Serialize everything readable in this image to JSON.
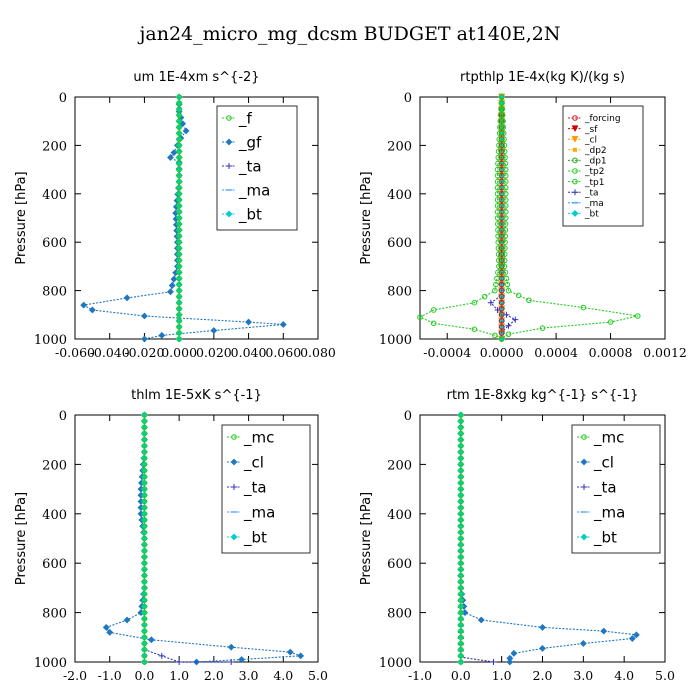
{
  "figure": {
    "title": "jan24_micro_mg_dcsm  BUDGET at140E,2N"
  },
  "chart_data": [
    {
      "type": "line",
      "title": "um   1E-4xm s^{-2}",
      "ylabel": "Pressure [hPa]",
      "xlabel": "",
      "xlim": [
        -0.06,
        0.08
      ],
      "ylim": [
        1000,
        0
      ],
      "xticks": [
        "-0.060",
        "-0.040",
        "-0.020",
        "0.000",
        "0.020",
        "0.040",
        "0.060",
        "0.080"
      ],
      "yticks": [
        "0",
        "200",
        "400",
        "600",
        "800",
        "1000"
      ],
      "legend_position": "top-right",
      "series": [
        {
          "name": "_f",
          "color": "#22cc22",
          "marker": "circle",
          "points": [
            [
              0,
              0
            ],
            [
              0,
              100
            ],
            [
              0,
              200
            ],
            [
              0,
              300
            ],
            [
              0,
              400
            ],
            [
              0,
              500
            ],
            [
              0,
              600
            ],
            [
              0,
              700
            ],
            [
              0,
              800
            ],
            [
              0,
              900
            ],
            [
              0,
              950
            ],
            [
              0,
              1000
            ]
          ]
        },
        {
          "name": "_gf",
          "color": "#1f77c0",
          "marker": "star",
          "points": [
            [
              0,
              0
            ],
            [
              0,
              60
            ],
            [
              0.002,
              110
            ],
            [
              0.004,
              140
            ],
            [
              0.001,
              170
            ],
            [
              -0.003,
              230
            ],
            [
              -0.005,
              250
            ],
            [
              0,
              270
            ],
            [
              0,
              350
            ],
            [
              -0.002,
              480
            ],
            [
              -0.001,
              600
            ],
            [
              -0.001,
              700
            ],
            [
              -0.005,
              805
            ],
            [
              -0.03,
              830
            ],
            [
              -0.055,
              860
            ],
            [
              -0.05,
              880
            ],
            [
              -0.02,
              905
            ],
            [
              0.04,
              930
            ],
            [
              0.06,
              940
            ],
            [
              0.02,
              965
            ],
            [
              -0.01,
              985
            ],
            [
              -0.02,
              1000
            ]
          ]
        },
        {
          "name": "_ta",
          "color": "#3333bb",
          "marker": "plus",
          "points": [
            [
              0,
              0
            ],
            [
              0,
              500
            ],
            [
              0,
              1000
            ]
          ]
        },
        {
          "name": "_ma",
          "color": "#3399ff",
          "marker": "dash",
          "points": [
            [
              0,
              0
            ],
            [
              0,
              1000
            ]
          ]
        },
        {
          "name": "_bt",
          "color": "#00cccc",
          "marker": "diamond",
          "points": [
            [
              0,
              0
            ],
            [
              0,
              1000
            ]
          ]
        }
      ]
    },
    {
      "type": "line",
      "title": "rtpthlp   1E-4x(kg K)/(kg s)",
      "ylabel": "Pressure [hPa]",
      "xlabel": "",
      "xlim": [
        -0.0006,
        0.0012
      ],
      "ylim": [
        1000,
        0
      ],
      "xticks": [
        "-0.0004",
        "0.0000",
        "0.0004",
        "0.0008",
        "0.0012"
      ],
      "yticks": [
        "0",
        "200",
        "400",
        "600",
        "800",
        "1000"
      ],
      "legend_position": "top-right",
      "series": [
        {
          "name": "_forcing",
          "color": "#cc2222",
          "marker": "circle",
          "points": [
            [
              0,
              0
            ],
            [
              0,
              1000
            ]
          ]
        },
        {
          "name": "_sf",
          "color": "#cc0000",
          "marker": "triangle",
          "points": [
            [
              0,
              0
            ],
            [
              0,
              1000
            ]
          ]
        },
        {
          "name": "_cl",
          "color": "#ff9900",
          "marker": "triangle",
          "points": [
            [
              0,
              0
            ],
            [
              0,
              1000
            ]
          ]
        },
        {
          "name": "_dp2",
          "color": "#ffaa00",
          "marker": "square",
          "points": [
            [
              0,
              0
            ],
            [
              0,
              1000
            ]
          ]
        },
        {
          "name": "_dp1",
          "color": "#22aa22",
          "marker": "circle",
          "points": [
            [
              0,
              0
            ],
            [
              0,
              1000
            ]
          ]
        },
        {
          "name": "_tp2",
          "color": "#22cc22",
          "marker": "circle",
          "points": [
            [
              0,
              0
            ],
            [
              3e-05,
              300
            ],
            [
              3e-05,
              500
            ],
            [
              2e-05,
              700
            ],
            [
              5e-05,
              800
            ],
            [
              0.0002,
              840
            ],
            [
              0.0006,
              870
            ],
            [
              0.001,
              905
            ],
            [
              0.0008,
              930
            ],
            [
              0.0003,
              955
            ],
            [
              5e-05,
              980
            ],
            [
              0,
              1000
            ]
          ]
        },
        {
          "name": "_tp1",
          "color": "#22cc22",
          "marker": "circle",
          "points": [
            [
              0,
              0
            ],
            [
              -3e-05,
              300
            ],
            [
              -3e-05,
              500
            ],
            [
              -2e-05,
              700
            ],
            [
              -5e-05,
              800
            ],
            [
              -0.0002,
              850
            ],
            [
              -0.0005,
              880
            ],
            [
              -0.0006,
              910
            ],
            [
              -0.0005,
              935
            ],
            [
              -0.0002,
              960
            ],
            [
              -5e-05,
              985
            ],
            [
              0,
              1000
            ]
          ]
        },
        {
          "name": "_ta",
          "color": "#3333bb",
          "marker": "plus",
          "points": [
            [
              0,
              0
            ],
            [
              0,
              820
            ],
            [
              -8e-05,
              850
            ],
            [
              -3e-05,
              880
            ],
            [
              0.0001,
              920
            ],
            [
              5e-05,
              945
            ],
            [
              0,
              970
            ],
            [
              0,
              1000
            ]
          ]
        },
        {
          "name": "_ma",
          "color": "#3399ff",
          "marker": "dash",
          "points": [
            [
              0,
              0
            ],
            [
              0,
              1000
            ]
          ]
        },
        {
          "name": "_bt",
          "color": "#00cccc",
          "marker": "diamond",
          "points": [
            [
              0,
              0
            ],
            [
              0,
              1000
            ]
          ]
        }
      ]
    },
    {
      "type": "line",
      "title": "thlm   1E-5xK s^{-1}",
      "ylabel": "Pressure [hPa]",
      "xlabel": "",
      "xlim": [
        -2.0,
        5.0
      ],
      "ylim": [
        1000,
        0
      ],
      "xticks": [
        "-2.0",
        "-1.0",
        "0.0",
        "1.0",
        "2.0",
        "3.0",
        "4.0",
        "5.0"
      ],
      "yticks": [
        "0",
        "200",
        "400",
        "600",
        "800",
        "1000"
      ],
      "legend_position": "top-right",
      "series": [
        {
          "name": "_mc",
          "color": "#22cc22",
          "marker": "circle",
          "points": [
            [
              0,
              0
            ],
            [
              0,
              1000
            ]
          ]
        },
        {
          "name": "_cl",
          "color": "#1f77c0",
          "marker": "star",
          "points": [
            [
              0,
              0
            ],
            [
              0,
              150
            ],
            [
              -0.1,
              300
            ],
            [
              -0.1,
              400
            ],
            [
              0,
              500
            ],
            [
              0,
              600
            ],
            [
              0,
              700
            ],
            [
              -0.1,
              800
            ],
            [
              -0.5,
              830
            ],
            [
              -1.1,
              860
            ],
            [
              -1.0,
              880
            ],
            [
              0.2,
              910
            ],
            [
              2.5,
              940
            ],
            [
              4.2,
              960
            ],
            [
              4.5,
              975
            ],
            [
              2.8,
              990
            ],
            [
              1.5,
              1000
            ]
          ]
        },
        {
          "name": "_ta",
          "color": "#3333bb",
          "marker": "plus",
          "points": [
            [
              0,
              0
            ],
            [
              0,
              950
            ],
            [
              1.0,
              1000
            ],
            [
              2.5,
              1000
            ]
          ]
        },
        {
          "name": "_ma",
          "color": "#3399ff",
          "marker": "dash",
          "points": [
            [
              0,
              0
            ],
            [
              0,
              1000
            ]
          ]
        },
        {
          "name": "_bt",
          "color": "#00cccc",
          "marker": "diamond",
          "points": [
            [
              0,
              0
            ],
            [
              0,
              1000
            ]
          ]
        }
      ]
    },
    {
      "type": "line",
      "title": "rtm   1E-8xkg kg^{-1} s^{-1}",
      "ylabel": "Pressure [hPa]",
      "xlabel": "",
      "xlim": [
        -1.0,
        5.0
      ],
      "ylim": [
        1000,
        0
      ],
      "xticks": [
        "-1.0",
        "0.0",
        "1.0",
        "2.0",
        "3.0",
        "4.0",
        "5.0"
      ],
      "yticks": [
        "0",
        "200",
        "400",
        "600",
        "800",
        "1000"
      ],
      "legend_position": "top-right",
      "series": [
        {
          "name": "_mc",
          "color": "#22cc22",
          "marker": "circle",
          "points": [
            [
              0,
              0
            ],
            [
              0,
              1000
            ]
          ]
        },
        {
          "name": "_cl",
          "color": "#1f77c0",
          "marker": "star",
          "points": [
            [
              0,
              0
            ],
            [
              0,
              150
            ],
            [
              0,
              300
            ],
            [
              0,
              500
            ],
            [
              0,
              600
            ],
            [
              0,
              700
            ],
            [
              0.1,
              800
            ],
            [
              0.5,
              830
            ],
            [
              2.0,
              860
            ],
            [
              3.5,
              875
            ],
            [
              4.3,
              890
            ],
            [
              4.2,
              905
            ],
            [
              3.0,
              925
            ],
            [
              2.0,
              945
            ],
            [
              1.3,
              965
            ],
            [
              1.2,
              985
            ],
            [
              1.2,
              1000
            ]
          ]
        },
        {
          "name": "_ta",
          "color": "#3333bb",
          "marker": "plus",
          "points": [
            [
              0,
              0
            ],
            [
              0,
              980
            ],
            [
              0.8,
              1000
            ]
          ]
        },
        {
          "name": "_ma",
          "color": "#3399ff",
          "marker": "dash",
          "points": [
            [
              0,
              0
            ],
            [
              0,
              1000
            ]
          ]
        },
        {
          "name": "_bt",
          "color": "#00cccc",
          "marker": "diamond",
          "points": [
            [
              0,
              0
            ],
            [
              0,
              1000
            ]
          ]
        }
      ]
    }
  ]
}
